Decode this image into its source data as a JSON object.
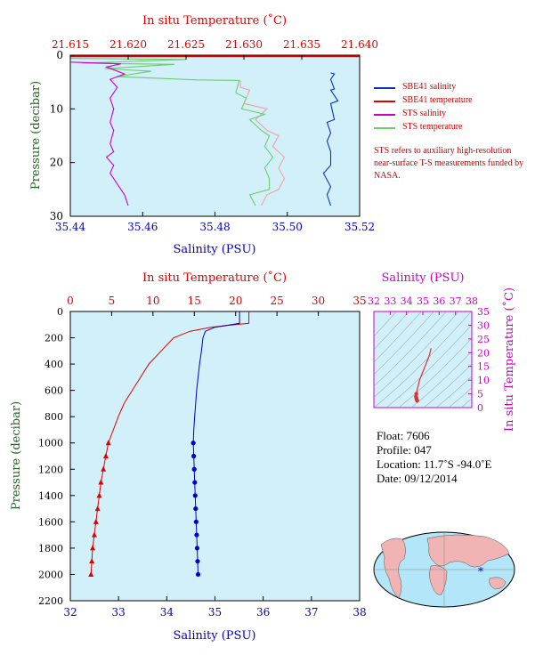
{
  "chart_data": [
    {
      "type": "line",
      "id": "upper",
      "title": "",
      "xlabel_bottom": "Salinity (PSU)",
      "xlabel_top": "In situ Temperature (˚C)",
      "ylabel": "Pressure (decibar)",
      "x_bottom_range": [
        35.44,
        35.52
      ],
      "x_top_range": [
        21.615,
        21.64
      ],
      "y_range": [
        0,
        30
      ],
      "y_inverted": true,
      "x_bottom_ticks": [
        "35.44",
        "35.46",
        "35.48",
        "35.50",
        "35.52"
      ],
      "x_top_ticks": [
        "21.615",
        "21.620",
        "21.625",
        "21.630",
        "21.635",
        "21.640"
      ],
      "y_ticks": [
        "0",
        "10",
        "20",
        "30"
      ],
      "background": "#d2f0fa",
      "series": [
        {
          "name": "SBE41 salinity",
          "color": "#1030c0",
          "axis": "bottom",
          "points": [
            [
              35.512,
              3.3
            ],
            [
              35.513,
              3.5
            ],
            [
              35.512,
              4.5
            ],
            [
              35.513,
              6.3
            ],
            [
              35.512,
              6.5
            ],
            [
              35.514,
              8.5
            ],
            [
              35.512,
              9
            ],
            [
              35.513,
              12
            ],
            [
              35.511,
              12.5
            ],
            [
              35.512,
              14.5
            ],
            [
              35.511,
              16
            ],
            [
              35.512,
              18
            ],
            [
              35.512,
              20.5
            ],
            [
              35.51,
              22
            ],
            [
              35.512,
              24.5
            ],
            [
              35.511,
              26
            ],
            [
              35.512,
              28
            ]
          ]
        },
        {
          "name": "SBE41 temperature",
          "color": "#e00000",
          "axis": "top",
          "points": [
            [
              21.6148,
              0.2
            ],
            [
              21.64,
              0.2
            ]
          ]
        },
        {
          "name": "STS salinity",
          "color": "#cc00cc",
          "axis": "bottom",
          "points": [
            [
              35.44,
              1.3
            ],
            [
              35.454,
              1.6
            ],
            [
              35.45,
              2.2
            ],
            [
              35.455,
              3.5
            ],
            [
              35.451,
              4.5
            ],
            [
              35.453,
              6
            ],
            [
              35.451,
              8
            ],
            [
              35.452,
              10
            ],
            [
              35.451,
              12.5
            ],
            [
              35.452,
              14
            ],
            [
              35.451,
              16.5
            ],
            [
              35.452,
              18
            ],
            [
              35.45,
              19
            ],
            [
              35.452,
              20.5
            ],
            [
              35.451,
              22
            ],
            [
              35.453,
              24
            ],
            [
              35.455,
              26
            ],
            [
              35.456,
              28
            ]
          ]
        },
        {
          "name": "STS temperature",
          "color": "#70cc70",
          "axis": "top",
          "points": [
            [
              21.615,
              0.6
            ],
            [
              21.625,
              0.8
            ],
            [
              21.616,
              1.5
            ],
            [
              21.624,
              1.7
            ],
            [
              21.618,
              2.5
            ],
            [
              21.622,
              3
            ],
            [
              21.619,
              4
            ],
            [
              21.626,
              4.6
            ],
            [
              21.6296,
              4.7
            ],
            [
              21.6293,
              7
            ],
            [
              21.6302,
              8
            ],
            [
              21.6298,
              10
            ],
            [
              21.6318,
              11
            ],
            [
              21.6305,
              12
            ],
            [
              21.6315,
              14
            ],
            [
              21.6322,
              15
            ],
            [
              21.6318,
              17
            ],
            [
              21.6325,
              19
            ],
            [
              21.6318,
              21
            ],
            [
              21.6322,
              23
            ],
            [
              21.6322,
              25
            ],
            [
              21.6305,
              26
            ],
            [
              21.631,
              28
            ]
          ]
        },
        {
          "name": "",
          "color": "#f2a2a2",
          "axis": "top",
          "points": [
            [
              21.6297,
              4.7
            ],
            [
              21.6297,
              6
            ],
            [
              21.6305,
              6.5
            ],
            [
              21.63,
              9
            ],
            [
              21.632,
              10
            ],
            [
              21.631,
              12
            ],
            [
              21.632,
              14
            ],
            [
              21.633,
              15
            ],
            [
              21.6325,
              17
            ],
            [
              21.6335,
              19
            ],
            [
              21.633,
              21
            ],
            [
              21.6335,
              23
            ],
            [
              21.633,
              25
            ],
            [
              21.632,
              26
            ],
            [
              21.6315,
              28
            ]
          ]
        }
      ],
      "legend": [
        "SBE41 salinity",
        "SBE41 temperature",
        "STS salinity",
        "STS temperature"
      ],
      "legend_placement": "right"
    },
    {
      "type": "line",
      "id": "lower",
      "xlabel_bottom": "Salinity (PSU)",
      "xlabel_top": "In situ Temperature (˚C)",
      "ylabel": "Pressure (decibar)",
      "x_bottom_range": [
        32,
        38
      ],
      "x_top_range": [
        0,
        35
      ],
      "y_range": [
        0,
        2200
      ],
      "y_inverted": true,
      "x_bottom_ticks": [
        "32",
        "33",
        "34",
        "35",
        "36",
        "37",
        "38"
      ],
      "x_top_ticks": [
        "0",
        "5",
        "10",
        "15",
        "20",
        "25",
        "30",
        "35"
      ],
      "y_ticks": [
        "0",
        "200",
        "400",
        "600",
        "800",
        "1000",
        "1200",
        "1400",
        "1600",
        "1800",
        "2000",
        "2200"
      ],
      "background": "#d2f0fa",
      "series": [
        {
          "name": "Temperature",
          "color": "#e00000",
          "axis": "top",
          "marker": "triangle",
          "points": [
            [
              21.6,
              0
            ],
            [
              21.6,
              90
            ],
            [
              20.0,
              100
            ],
            [
              17.0,
              120
            ],
            [
              14.5,
              150
            ],
            [
              12.5,
              200
            ],
            [
              11.0,
              300
            ],
            [
              9.5,
              400
            ],
            [
              8.5,
              500
            ],
            [
              7.5,
              600
            ],
            [
              6.5,
              700
            ],
            [
              5.8,
              800
            ],
            [
              5.2,
              900
            ],
            [
              4.6,
              1000
            ],
            [
              4.3,
              1100
            ],
            [
              4.0,
              1200
            ],
            [
              3.7,
              1300
            ],
            [
              3.5,
              1400
            ],
            [
              3.3,
              1500
            ],
            [
              3.1,
              1600
            ],
            [
              2.9,
              1700
            ],
            [
              2.7,
              1800
            ],
            [
              2.6,
              1900
            ],
            [
              2.5,
              2000
            ]
          ]
        },
        {
          "name": "Salinity",
          "color": "#0000c8",
          "axis": "bottom",
          "marker": "circle",
          "points": [
            [
              35.51,
              0
            ],
            [
              35.51,
              90
            ],
            [
              35.0,
              120
            ],
            [
              34.8,
              150
            ],
            [
              34.75,
              200
            ],
            [
              34.72,
              300
            ],
            [
              34.68,
              400
            ],
            [
              34.65,
              500
            ],
            [
              34.62,
              600
            ],
            [
              34.6,
              700
            ],
            [
              34.58,
              800
            ],
            [
              34.56,
              900
            ],
            [
              34.55,
              1000
            ],
            [
              34.56,
              1100
            ],
            [
              34.57,
              1200
            ],
            [
              34.58,
              1300
            ],
            [
              34.59,
              1400
            ],
            [
              34.6,
              1500
            ],
            [
              34.61,
              1600
            ],
            [
              34.62,
              1700
            ],
            [
              34.63,
              1800
            ],
            [
              34.64,
              1900
            ],
            [
              34.65,
              2000
            ]
          ]
        }
      ]
    },
    {
      "type": "scatter",
      "id": "ts-diagram",
      "xlabel_top": "Salinity (PSU)",
      "ylabel_right": "In situ Temperature (˚C)",
      "x_range": [
        32,
        38
      ],
      "y_range": [
        0,
        35
      ],
      "x_ticks": [
        "32",
        "33",
        "34",
        "35",
        "36",
        "37",
        "38"
      ],
      "y_ticks": [
        "0",
        "5",
        "10",
        "15",
        "20",
        "25",
        "30",
        "35"
      ],
      "background": "#d2f0fa",
      "series": [
        {
          "name": "",
          "color": "#e03030",
          "points": [
            [
              35.51,
              21.6
            ],
            [
              35.4,
              19
            ],
            [
              35.2,
              16
            ],
            [
              35.0,
              13
            ],
            [
              34.8,
              10
            ],
            [
              34.72,
              8
            ],
            [
              34.65,
              6.5
            ],
            [
              34.6,
              5
            ],
            [
              34.58,
              4
            ],
            [
              34.6,
              3.5
            ],
            [
              34.62,
              3
            ],
            [
              34.65,
              2.5
            ]
          ]
        }
      ]
    }
  ],
  "legend_labels": {
    "sbe41_salinity": "SBE41 salinity",
    "sbe41_temperature": "SBE41 temperature",
    "sts_salinity": "STS salinity",
    "sts_temperature": "STS temperature"
  },
  "note": "STS refers to auxiliary high-resolution near-surface T-S measurements funded by NASA.",
  "float_info": {
    "float": "Float:  7606",
    "profile": "Profile:  047",
    "location": "Location:  11.7˚S  -94.0˚E",
    "date": "Date:  09/12/2014"
  },
  "map": {
    "marker_color": "#0000cc",
    "ocean_color": "#b4e6fa",
    "land_color": "#f0b4b4"
  },
  "colors": {
    "axis_red": "#e00000",
    "axis_blue": "#0000c8",
    "axis_green": "#226622",
    "axis_magenta": "#cc00cc"
  }
}
